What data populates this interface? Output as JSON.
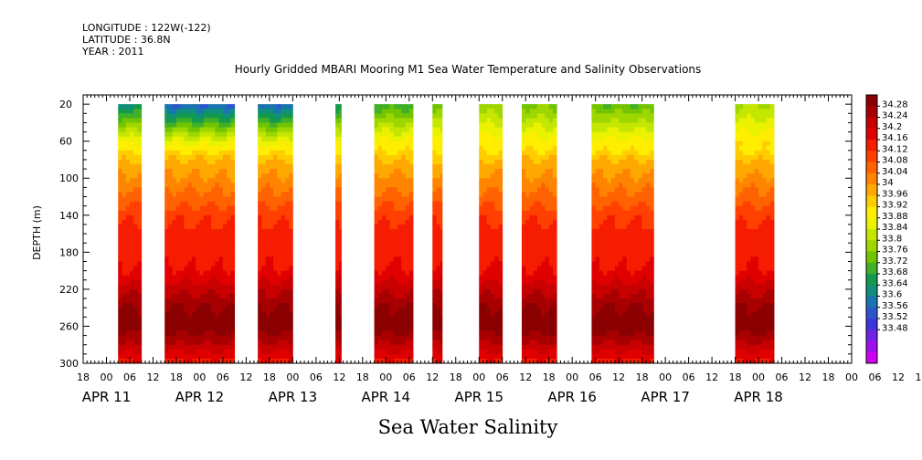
{
  "header": {
    "longitude": "LONGITUDE : 122W(-122)",
    "latitude": "LATITUDE : 36.8N",
    "year": "YEAR : 2011"
  },
  "chart_data": {
    "type": "heatmap",
    "title": "Hourly Gridded MBARI Mooring M1 Sea Water Temperature and Salinity Observations",
    "xlabel": "Sea Water Salinity",
    "ylabel": "DEPTH (m)",
    "x_unit": "hours since APR 10 2011 18:00",
    "xlim": [
      0,
      198
    ],
    "ylim": [
      300,
      10
    ],
    "y_ticks": [
      20,
      60,
      100,
      140,
      180,
      220,
      260,
      300
    ],
    "x_hour_ticks": [
      "18",
      "00",
      "06",
      "12",
      "18",
      "00",
      "06",
      "12",
      "18",
      "00",
      "06",
      "12",
      "18",
      "00",
      "06",
      "12",
      "18",
      "00",
      "06",
      "12",
      "18",
      "00",
      "06",
      "12",
      "18",
      "00",
      "06",
      "12",
      "18",
      "00",
      "06",
      "12",
      "18",
      "00",
      "06",
      "12",
      "18"
    ],
    "x_date_labels": [
      {
        "label": "APR 11",
        "hour": 6
      },
      {
        "label": "APR 12",
        "hour": 30
      },
      {
        "label": "APR 13",
        "hour": 54
      },
      {
        "label": "APR 14",
        "hour": 78
      },
      {
        "label": "APR 15",
        "hour": 102
      },
      {
        "label": "APR 16",
        "hour": 126
      },
      {
        "label": "APR 17",
        "hour": 150
      },
      {
        "label": "APR 18",
        "hour": 174
      }
    ],
    "data_segments": [
      {
        "start": 9,
        "end": 15
      },
      {
        "start": 21,
        "end": 39
      },
      {
        "start": 45,
        "end": 54
      },
      {
        "start": 65,
        "end": 66.5
      },
      {
        "start": 75,
        "end": 85
      },
      {
        "start": 90,
        "end": 92.5
      },
      {
        "start": 102,
        "end": 108
      },
      {
        "start": 113,
        "end": 122
      },
      {
        "start": 131,
        "end": 147
      },
      {
        "start": 168,
        "end": 178
      }
    ],
    "profile_depths": [
      20,
      40,
      60,
      80,
      100,
      120,
      140,
      160,
      180,
      200,
      220,
      240,
      260,
      280,
      300
    ],
    "profile_salinity": [
      33.66,
      33.78,
      33.9,
      33.98,
      34.02,
      34.06,
      34.1,
      34.13,
      34.13,
      34.15,
      34.2,
      34.25,
      34.27,
      34.21,
      34.13
    ],
    "segment_surface_salinity": [
      33.7,
      33.64,
      33.64,
      33.7,
      33.76,
      33.78,
      33.82,
      33.8,
      33.78,
      33.84
    ],
    "colorbar": {
      "levels": [
        "34.28",
        "34.24",
        "34.2",
        "34.16",
        "34.12",
        "34.08",
        "34.04",
        "34",
        "33.96",
        "33.92",
        "33.88",
        "33.84",
        "33.8",
        "33.76",
        "33.72",
        "33.68",
        "33.64",
        "33.6",
        "33.56",
        "33.52",
        "33.48"
      ],
      "colors": [
        "#8b0000",
        "#a80000",
        "#c80000",
        "#e00000",
        "#f51c00",
        "#ff4000",
        "#ff6200",
        "#ff8400",
        "#ffa800",
        "#ffcc00",
        "#ffee00",
        "#eaf200",
        "#c4e600",
        "#9ed600",
        "#72c400",
        "#40b028",
        "#14994e",
        "#0f8f7c",
        "#1a74b0",
        "#2c55cc",
        "#3c36dd",
        "#6f24e6",
        "#9d12ec",
        "#d000f5"
      ]
    }
  }
}
